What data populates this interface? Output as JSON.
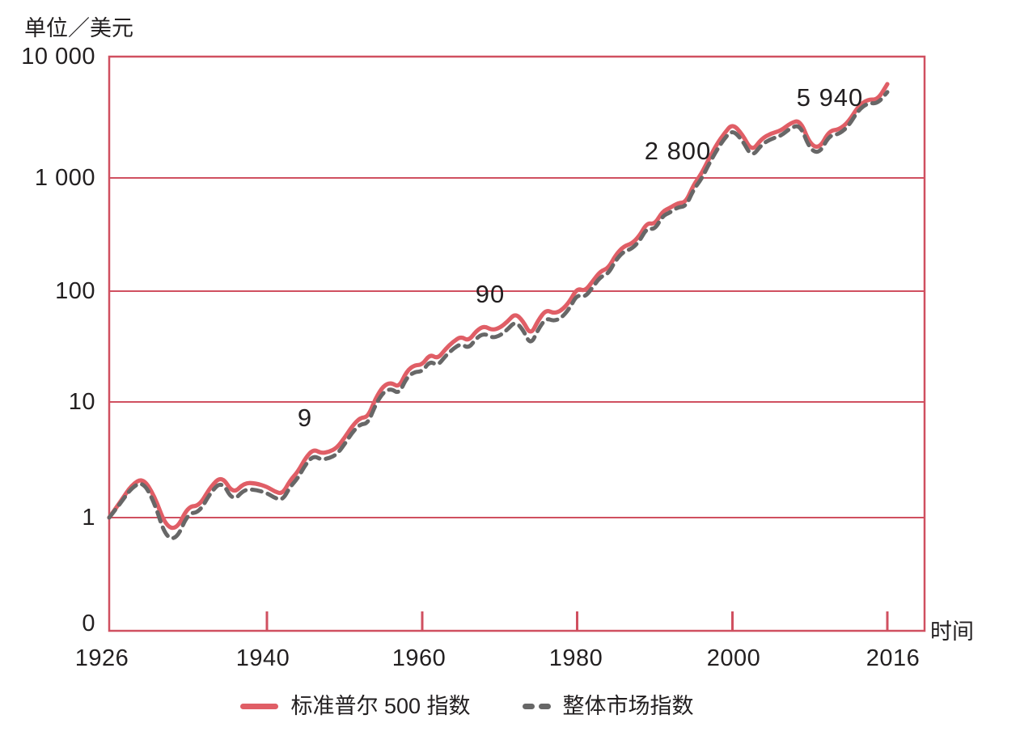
{
  "chart_data": {
    "type": "line",
    "title": "",
    "ylabel": "单位／美元",
    "xlabel": "时间",
    "y_scale": "log",
    "x_range": [
      1926,
      2016
    ],
    "years": [
      1926,
      1927,
      1928,
      1929,
      1930,
      1931,
      1932,
      1933,
      1934,
      1935,
      1936,
      1937,
      1938,
      1939,
      1940,
      1941,
      1942,
      1943,
      1944,
      1945,
      1946,
      1947,
      1948,
      1949,
      1950,
      1951,
      1952,
      1953,
      1954,
      1955,
      1956,
      1957,
      1958,
      1959,
      1960,
      1961,
      1962,
      1963,
      1964,
      1965,
      1966,
      1967,
      1968,
      1969,
      1970,
      1971,
      1972,
      1973,
      1974,
      1975,
      1976,
      1977,
      1978,
      1979,
      1980,
      1981,
      1982,
      1983,
      1984,
      1985,
      1986,
      1987,
      1988,
      1989,
      1990,
      1991,
      1992,
      1993,
      1994,
      1995,
      1996,
      1997,
      1998,
      1999,
      2000,
      2001,
      2002,
      2003,
      2004,
      2005,
      2006,
      2007,
      2008,
      2009,
      2010,
      2011,
      2012,
      2013,
      2014,
      2015,
      2016
    ],
    "series": [
      {
        "name": "标准普尔 500 指数",
        "color": "#e05e66",
        "style": "solid",
        "values": [
          1.0,
          1.37,
          1.92,
          2.2,
          1.55,
          0.85,
          0.79,
          1.25,
          1.26,
          1.85,
          2.3,
          1.6,
          2.0,
          1.98,
          1.85,
          1.68,
          1.6,
          2.1,
          2.5,
          3.3,
          3.9,
          3.6,
          3.7,
          4.0,
          4.9,
          6.2,
          7.3,
          7.4,
          10.8,
          14,
          15,
          13.5,
          19,
          21.5,
          21.6,
          27,
          24.5,
          30,
          35,
          39,
          35.5,
          44,
          48.5,
          44.5,
          46.5,
          53,
          63,
          54,
          40,
          55,
          68,
          63,
          67,
          80,
          106,
          100,
          122,
          150,
          159,
          210,
          249,
          262,
          305,
          402,
          389,
          507,
          546,
          601,
          609,
          870,
          1080,
          1450,
          1900,
          2350,
          2800,
          2300,
          1650,
          2100,
          2330,
          2450,
          2830,
          3000,
          1900,
          1750,
          2450,
          2500,
          2900,
          3900,
          4450,
          4400,
          5940
        ]
      },
      {
        "name": "整体市场指数",
        "color": "#676767",
        "style": "dashed",
        "values": [
          1.0,
          1.33,
          1.82,
          2.05,
          1.36,
          0.68,
          0.65,
          1.09,
          1.11,
          1.65,
          2.07,
          1.38,
          1.76,
          1.74,
          1.63,
          1.48,
          1.41,
          1.85,
          2.2,
          2.9,
          3.43,
          3.17,
          3.26,
          3.52,
          4.31,
          5.46,
          6.42,
          6.5,
          9.5,
          12.3,
          13.2,
          11.8,
          16.6,
          18.7,
          18.8,
          23.4,
          21.2,
          26,
          30.2,
          33.6,
          30.4,
          37.8,
          41.6,
          37.9,
          39.5,
          45,
          53.3,
          45.1,
          32.4,
          45.7,
          57.1,
          53.6,
          57.6,
          69.6,
          93,
          88,
          108,
          134,
          142,
          189,
          224,
          236,
          275,
          362,
          350,
          461,
          497,
          553,
          560,
          790,
          975,
          1310,
          1700,
          2130,
          2480,
          2060,
          1480,
          1880,
          2100,
          2220,
          2580,
          2740,
          1720,
          1590,
          2240,
          2290,
          2680,
          3620,
          4150,
          4100,
          5100
        ]
      }
    ],
    "y_ticks": [
      {
        "label": "10 000",
        "value": 10000
      },
      {
        "label": "1 000",
        "value": 1000
      },
      {
        "label": "100",
        "value": 100
      },
      {
        "label": "10",
        "value": 10
      },
      {
        "label": "1",
        "value": 1
      },
      {
        "label": "0",
        "value": 0
      }
    ],
    "x_ticks": [
      {
        "label": "1926",
        "year": 1926
      },
      {
        "label": "1940",
        "year": 1940
      },
      {
        "label": "1960",
        "year": 1960
      },
      {
        "label": "1980",
        "year": 1980
      },
      {
        "label": "2000",
        "year": 2000
      },
      {
        "label": "2016",
        "year": 2016
      }
    ],
    "annotations": [
      {
        "text": "9",
        "value": 9,
        "near_year": 1950
      },
      {
        "text": "90",
        "value": 90,
        "near_year": 1970
      },
      {
        "text": "2 800",
        "value": 2800,
        "near_year": 1995
      },
      {
        "text": "5 940",
        "value": 5940,
        "near_year": 2012
      }
    ],
    "axis_color": "#d05060",
    "legend_position": "bottom",
    "grid": "horizontal"
  },
  "legend": {
    "items": [
      {
        "label": "标准普尔 500 指数",
        "color": "#e05e66",
        "dashed": false
      },
      {
        "label": "整体市场指数",
        "color": "#676767",
        "dashed": true
      }
    ]
  }
}
